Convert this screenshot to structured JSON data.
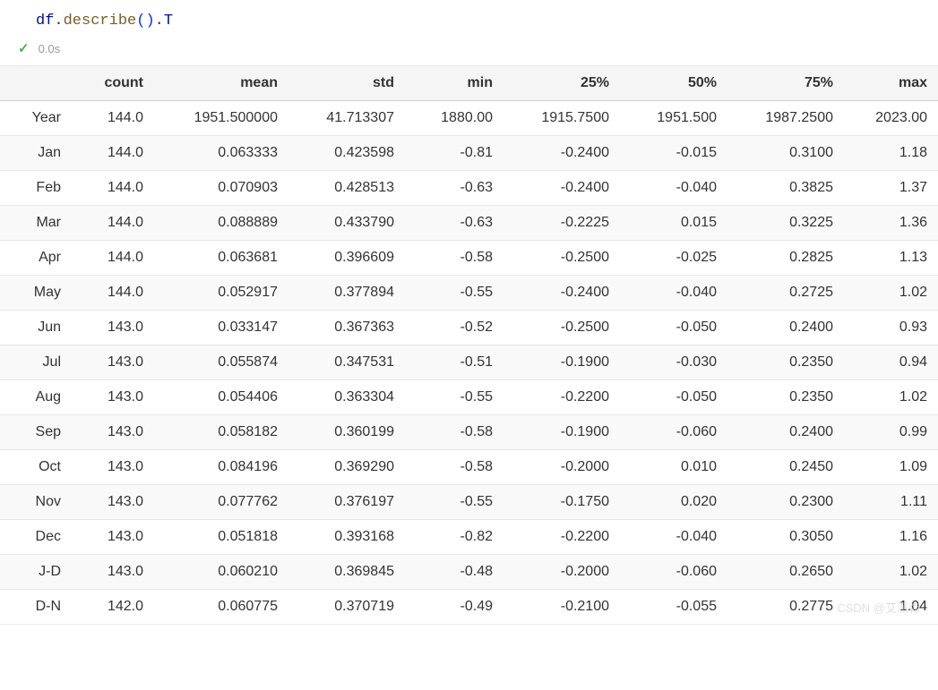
{
  "code": {
    "variable": "df",
    "method1": "describe",
    "method2": "T"
  },
  "status": {
    "time": "0.0s"
  },
  "table": {
    "columns": [
      "",
      "count",
      "mean",
      "std",
      "min",
      "25%",
      "50%",
      "75%",
      "max"
    ],
    "rows": [
      {
        "label": "Year",
        "count": "144.0",
        "mean": "1951.500000",
        "std": "41.713307",
        "min": "1880.00",
        "p25": "1915.7500",
        "p50": "1951.500",
        "p75": "1987.2500",
        "max": "2023.00"
      },
      {
        "label": "Jan",
        "count": "144.0",
        "mean": "0.063333",
        "std": "0.423598",
        "min": "-0.81",
        "p25": "-0.2400",
        "p50": "-0.015",
        "p75": "0.3100",
        "max": "1.18"
      },
      {
        "label": "Feb",
        "count": "144.0",
        "mean": "0.070903",
        "std": "0.428513",
        "min": "-0.63",
        "p25": "-0.2400",
        "p50": "-0.040",
        "p75": "0.3825",
        "max": "1.37"
      },
      {
        "label": "Mar",
        "count": "144.0",
        "mean": "0.088889",
        "std": "0.433790",
        "min": "-0.63",
        "p25": "-0.2225",
        "p50": "0.015",
        "p75": "0.3225",
        "max": "1.36"
      },
      {
        "label": "Apr",
        "count": "144.0",
        "mean": "0.063681",
        "std": "0.396609",
        "min": "-0.58",
        "p25": "-0.2500",
        "p50": "-0.025",
        "p75": "0.2825",
        "max": "1.13"
      },
      {
        "label": "May",
        "count": "144.0",
        "mean": "0.052917",
        "std": "0.377894",
        "min": "-0.55",
        "p25": "-0.2400",
        "p50": "-0.040",
        "p75": "0.2725",
        "max": "1.02"
      },
      {
        "label": "Jun",
        "count": "143.0",
        "mean": "0.033147",
        "std": "0.367363",
        "min": "-0.52",
        "p25": "-0.2500",
        "p50": "-0.050",
        "p75": "0.2400",
        "max": "0.93"
      },
      {
        "label": "Jul",
        "count": "143.0",
        "mean": "0.055874",
        "std": "0.347531",
        "min": "-0.51",
        "p25": "-0.1900",
        "p50": "-0.030",
        "p75": "0.2350",
        "max": "0.94"
      },
      {
        "label": "Aug",
        "count": "143.0",
        "mean": "0.054406",
        "std": "0.363304",
        "min": "-0.55",
        "p25": "-0.2200",
        "p50": "-0.050",
        "p75": "0.2350",
        "max": "1.02"
      },
      {
        "label": "Sep",
        "count": "143.0",
        "mean": "0.058182",
        "std": "0.360199",
        "min": "-0.58",
        "p25": "-0.1900",
        "p50": "-0.060",
        "p75": "0.2400",
        "max": "0.99"
      },
      {
        "label": "Oct",
        "count": "143.0",
        "mean": "0.084196",
        "std": "0.369290",
        "min": "-0.58",
        "p25": "-0.2000",
        "p50": "0.010",
        "p75": "0.2450",
        "max": "1.09"
      },
      {
        "label": "Nov",
        "count": "143.0",
        "mean": "0.077762",
        "std": "0.376197",
        "min": "-0.55",
        "p25": "-0.1750",
        "p50": "0.020",
        "p75": "0.2300",
        "max": "1.11"
      },
      {
        "label": "Dec",
        "count": "143.0",
        "mean": "0.051818",
        "std": "0.393168",
        "min": "-0.82",
        "p25": "-0.2200",
        "p50": "-0.040",
        "p75": "0.3050",
        "max": "1.16"
      },
      {
        "label": "J-D",
        "count": "143.0",
        "mean": "0.060210",
        "std": "0.369845",
        "min": "-0.48",
        "p25": "-0.2000",
        "p50": "-0.060",
        "p75": "0.2650",
        "max": "1.02"
      },
      {
        "label": "D-N",
        "count": "142.0",
        "mean": "0.060775",
        "std": "0.370719",
        "min": "-0.49",
        "p25": "-0.2100",
        "p50": "-0.055",
        "p75": "0.2775",
        "max": "1.04"
      }
    ]
  },
  "styling": {
    "header_bg": "#f5f5f5",
    "row_even_bg": "#f9f9f9",
    "row_odd_bg": "#ffffff",
    "border_color": "#e8e8e8",
    "text_color": "#333333",
    "font_size": 16
  },
  "watermark": "CSDN @艾派森"
}
